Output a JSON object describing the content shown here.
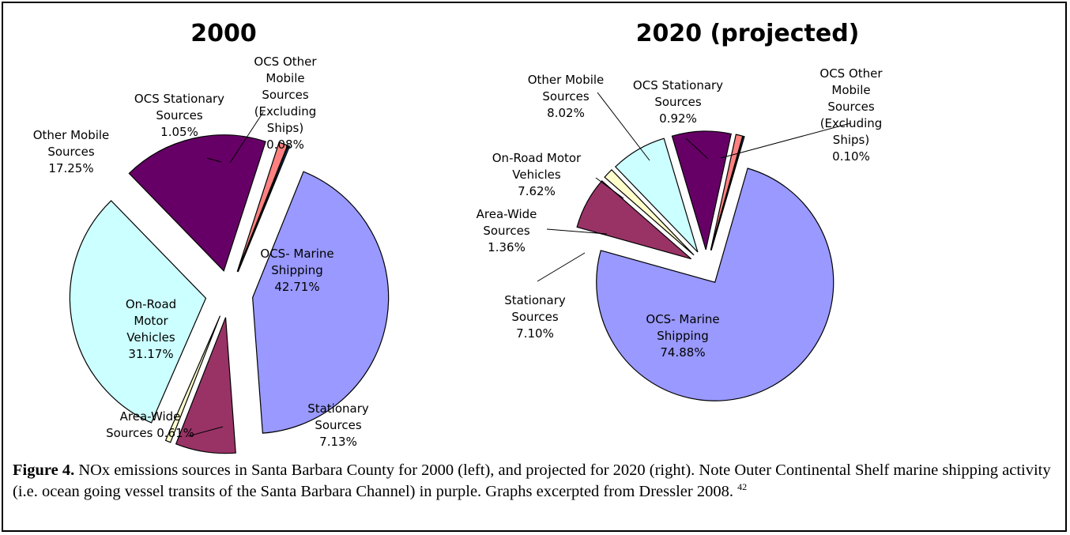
{
  "chart_data": [
    {
      "type": "pie",
      "title": "2000",
      "slices": [
        {
          "label": [
            "OCS- Marine",
            "Shipping",
            "42.71%"
          ],
          "value": 42.71,
          "color": "#9999ff"
        },
        {
          "label": [
            "Stationary",
            "Sources",
            "7.13%"
          ],
          "value": 7.13,
          "color": "#993366"
        },
        {
          "label": [
            "Area-Wide",
            "Sources 0.61%"
          ],
          "value": 0.61,
          "color": "#ffffcc"
        },
        {
          "label": [
            "On-Road",
            "Motor",
            "Vehicles",
            "31.17%"
          ],
          "value": 31.17,
          "color": "#ccffff"
        },
        {
          "label": [
            "Other Mobile",
            "Sources",
            "17.25%"
          ],
          "value": 17.25,
          "color": "#660066"
        },
        {
          "label": [
            "OCS Stationary",
            "Sources",
            "1.05%"
          ],
          "value": 1.05,
          "color": "#ff8080"
        },
        {
          "label": [
            "OCS Other",
            "Mobile",
            "Sources",
            "(Excluding",
            "Ships)",
            "0.08%"
          ],
          "value": 0.08,
          "color": "#0066cc"
        }
      ]
    },
    {
      "type": "pie",
      "title": "2020 (projected)",
      "slices": [
        {
          "label": [
            "OCS- Marine",
            "Shipping",
            "74.88%"
          ],
          "value": 74.88,
          "color": "#9999ff"
        },
        {
          "label": [
            "Stationary",
            "Sources",
            "7.10%"
          ],
          "value": 7.1,
          "color": "#993366"
        },
        {
          "label": [
            "Area-Wide",
            "Sources",
            "1.36%"
          ],
          "value": 1.36,
          "color": "#ffffcc"
        },
        {
          "label": [
            "On-Road Motor",
            "Vehicles",
            "7.62%"
          ],
          "value": 7.62,
          "color": "#ccffff"
        },
        {
          "label": [
            "Other Mobile",
            "Sources",
            "8.02%"
          ],
          "value": 8.02,
          "color": "#660066"
        },
        {
          "label": [
            "OCS Stationary",
            "Sources",
            "0.92%"
          ],
          "value": 0.92,
          "color": "#ff8080"
        },
        {
          "label": [
            "OCS Other",
            "Mobile",
            "Sources",
            "(Excluding",
            "Ships)",
            "0.10%"
          ],
          "value": 0.1,
          "color": "#0066cc"
        }
      ]
    }
  ],
  "caption": {
    "label": "Figure 4.",
    "text": "  NOx emissions sources in Santa Barbara County for 2000 (left), and projected for 2020 (right).  Note Outer Continental Shelf marine shipping activity (i.e. ocean going vessel transits of the Santa Barbara Channel) in purple.  Graphs excerpted from Dressler 2008.",
    "footnote": "42"
  }
}
